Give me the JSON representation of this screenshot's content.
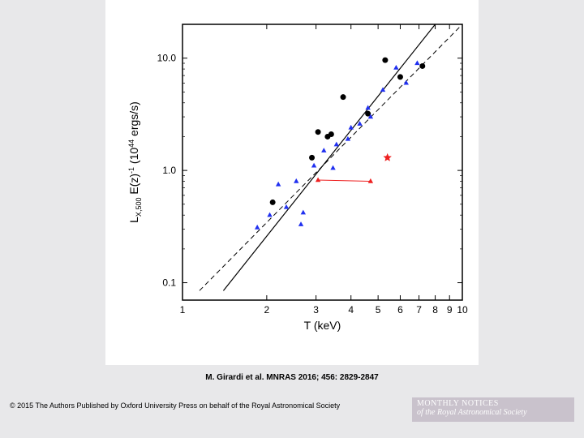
{
  "chart": {
    "type": "scatter-loglog",
    "xlabel": "T (keV)",
    "ylabel": "L_{X,500} E(z)^{-1} (10^{44} ergs/s)",
    "x_range": [
      1,
      10
    ],
    "y_range": [
      0.07,
      20
    ],
    "x_ticks": [
      1,
      2,
      3,
      4,
      5,
      6,
      7,
      8,
      9,
      10
    ],
    "x_tick_labels": [
      "1",
      "2",
      "3",
      "4",
      "5",
      "6",
      "7",
      "8",
      "9",
      "10"
    ],
    "y_ticks": [
      0.1,
      1.0,
      10.0
    ],
    "y_tick_labels": [
      "0.1",
      "1.0",
      "10.0"
    ],
    "label_fontsize": 14,
    "tick_fontsize": 12,
    "axis_color": "#000000",
    "background": "#ffffff",
    "series": {
      "black_circles": {
        "marker": "circle",
        "color": "#000000",
        "size": 7,
        "points": [
          [
            2.1,
            0.52
          ],
          [
            2.9,
            1.3
          ],
          [
            3.05,
            2.2
          ],
          [
            3.3,
            2.0
          ],
          [
            3.4,
            2.1
          ],
          [
            3.75,
            4.5
          ],
          [
            4.6,
            3.2
          ],
          [
            5.3,
            9.6
          ],
          [
            6.0,
            6.8
          ],
          [
            7.2,
            8.5
          ]
        ]
      },
      "blue_triangles": {
        "marker": "triangle",
        "color": "#2030f0",
        "size": 8,
        "points": [
          [
            1.85,
            0.31
          ],
          [
            2.05,
            0.4
          ],
          [
            2.2,
            0.75
          ],
          [
            2.35,
            0.47
          ],
          [
            2.55,
            0.8
          ],
          [
            2.65,
            0.33
          ],
          [
            2.7,
            0.42
          ],
          [
            2.95,
            1.1
          ],
          [
            3.2,
            1.5
          ],
          [
            3.45,
            1.05
          ],
          [
            3.55,
            1.7
          ],
          [
            3.9,
            1.9
          ],
          [
            4.0,
            2.4
          ],
          [
            4.3,
            2.6
          ],
          [
            4.6,
            3.6
          ],
          [
            4.7,
            3.0
          ],
          [
            5.2,
            5.2
          ],
          [
            5.8,
            8.2
          ],
          [
            6.3,
            6.0
          ],
          [
            6.9,
            9.0
          ]
        ]
      },
      "red_triangles": {
        "marker": "triangle",
        "color": "#ee2020",
        "size": 8,
        "points": [
          [
            3.05,
            0.82
          ],
          [
            4.7,
            0.8
          ]
        ],
        "link_line": {
          "from": [
            3.05,
            0.82
          ],
          "to": [
            4.7,
            0.8
          ],
          "color": "#ee2020",
          "width": 1
        }
      },
      "red_star": {
        "marker": "star",
        "color": "#ee2020",
        "size": 11,
        "points": [
          [
            5.4,
            1.3
          ]
        ]
      }
    },
    "fit_lines": {
      "solid": {
        "style": "solid",
        "color": "#000000",
        "width": 1.2,
        "x1": 1.4,
        "y1": 0.085,
        "x2": 8.0,
        "y2": 20.0
      },
      "dashed": {
        "style": "dashed",
        "color": "#000000",
        "width": 1.0,
        "x1": 1.15,
        "y1": 0.085,
        "x2": 10.0,
        "y2": 20.0
      }
    }
  },
  "citation": "M. Girardi et al. MNRAS 2016; 456: 2829-2847",
  "copyright": "© 2015 The Authors Published by Oxford University Press on behalf of the Royal Astronomical Society",
  "journal": {
    "line1": "MONTHLY NOTICES",
    "line2": "of the Royal Astronomical Society"
  }
}
